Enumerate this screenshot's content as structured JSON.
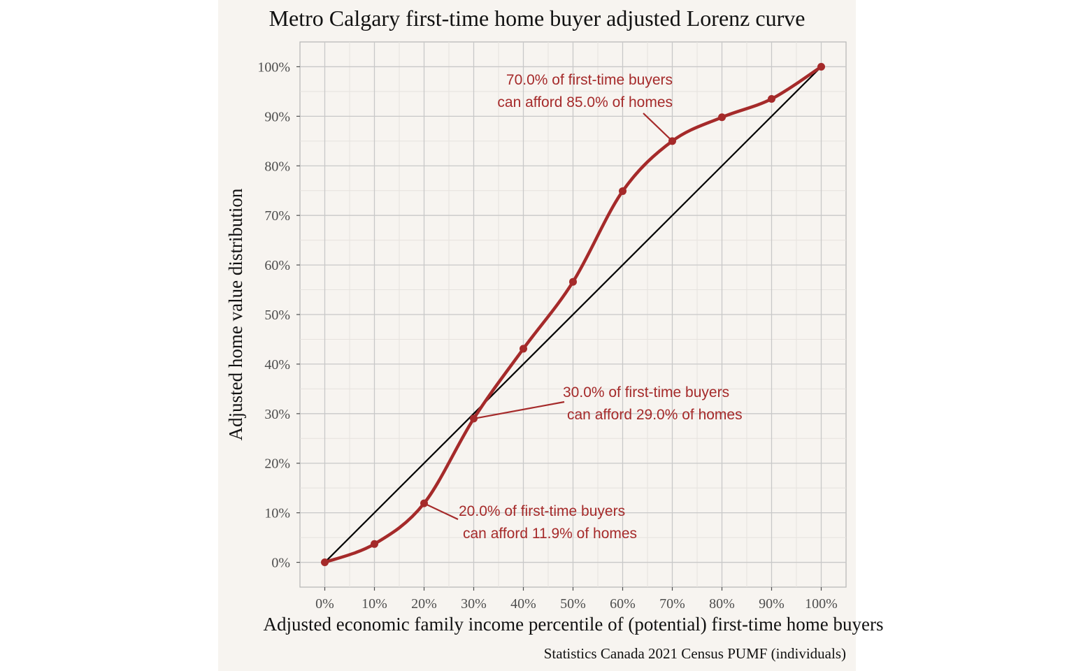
{
  "chart_data": {
    "type": "line",
    "title": "Metro Calgary first-time home buyer adjusted Lorenz curve",
    "xlabel": "Adjusted economic family income percentile of (potential) first-time home buyers",
    "ylabel": "Adjusted home value distribution",
    "caption": "Statistics Canada 2021 Census PUMF (individuals)",
    "xlim": [
      -0.05,
      1.05
    ],
    "ylim": [
      -0.05,
      1.05
    ],
    "x_ticks": [
      0,
      0.1,
      0.2,
      0.3,
      0.4,
      0.5,
      0.6,
      0.7,
      0.8,
      0.9,
      1.0
    ],
    "x_tick_labels": [
      "0%",
      "10%",
      "20%",
      "30%",
      "40%",
      "50%",
      "60%",
      "70%",
      "80%",
      "90%",
      "100%"
    ],
    "y_ticks": [
      0,
      0.1,
      0.2,
      0.3,
      0.4,
      0.5,
      0.6,
      0.7,
      0.8,
      0.9,
      1.0
    ],
    "y_tick_labels": [
      "0%",
      "10%",
      "20%",
      "30%",
      "40%",
      "50%",
      "60%",
      "70%",
      "80%",
      "90%",
      "100%"
    ],
    "grid": true,
    "series": [
      {
        "x": [
          0,
          0.1,
          0.2,
          0.3,
          0.4,
          0.5,
          0.6,
          0.7,
          0.8,
          0.9,
          1.0
        ],
        "y": [
          0,
          0.037,
          0.119,
          0.29,
          0.431,
          0.566,
          0.749,
          0.85,
          0.898,
          0.935,
          1.0
        ],
        "color": "#a52a2a"
      }
    ],
    "reference_line": {
      "x": [
        0,
        1
      ],
      "y": [
        0,
        1
      ],
      "color": "#000000"
    },
    "annotations": [
      {
        "lines": [
          "70.0% of first-time buyers",
          "can afford 85.0% of homes"
        ],
        "point": [
          0.7,
          0.85
        ]
      },
      {
        "lines": [
          "30.0% of first-time buyers",
          "can afford 29.0% of homes"
        ],
        "point": [
          0.3,
          0.29
        ]
      },
      {
        "lines": [
          "20.0% of first-time buyers",
          "can afford 11.9% of homes"
        ],
        "point": [
          0.2,
          0.119
        ]
      }
    ]
  },
  "colors": {
    "panel_background": "#f7f4f0",
    "grid_major": "#c8c8c8",
    "grid_minor": "#e6e2de",
    "curve": "#a52a2a",
    "equality_line": "#000000"
  }
}
